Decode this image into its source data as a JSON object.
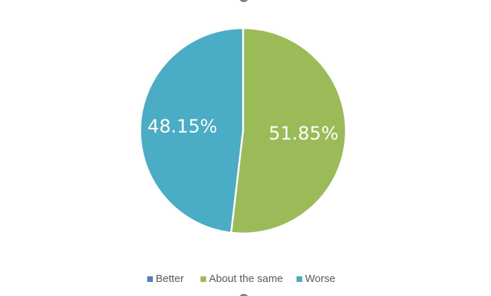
{
  "chart_data": {
    "type": "pie",
    "categories": [
      "Better",
      "About the same",
      "Worse"
    ],
    "values": [
      0,
      51.85,
      48.15
    ],
    "value_labels": [
      null,
      "51.85%",
      "48.15%"
    ],
    "colors": [
      "#4f81bd",
      "#9bbb59",
      "#4bacc6"
    ],
    "legend": "bottom"
  }
}
